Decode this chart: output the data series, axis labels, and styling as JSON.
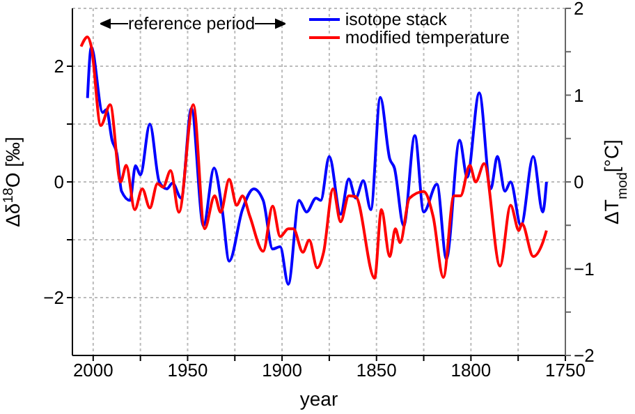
{
  "chart_data": {
    "type": "line",
    "xlabel": "year",
    "ylabel": "Δδ$^{18}$O [‰]",
    "y2label": "ΔT$_{mod}$[°C]",
    "annotations": [
      "reference period"
    ],
    "xlim": [
      2011,
      1750
    ],
    "xticks": [
      2000,
      {
        "value": 1975,
        "label": null
      },
      1950,
      {
        "value": 1925,
        "label": null
      },
      1900,
      {
        "value": 1875,
        "label": null
      },
      1850,
      {
        "value": 1825,
        "label": null
      },
      1800,
      {
        "value": 1775,
        "label": null
      },
      1750
    ],
    "ylim": [
      -3,
      3
    ],
    "yticks": [
      {
        "value": -2,
        "label": "−2"
      },
      {
        "value": -1,
        "label": null
      },
      0,
      {
        "value": 1,
        "label": null
      },
      2
    ],
    "y2lim": [
      -2,
      2
    ],
    "y2ticks": [
      {
        "value": -2,
        "label": "−2"
      },
      {
        "value": -1.5,
        "label": null
      },
      {
        "value": -1,
        "label": "−1"
      },
      {
        "value": -0.5,
        "label": null
      },
      0,
      {
        "value": 0.5,
        "label": null
      },
      1,
      {
        "value": 1.5,
        "label": null
      },
      2
    ],
    "grid": true,
    "legend": "top right",
    "marker": "none",
    "line_style": "solid",
    "series": [
      {
        "name": "isotope stack",
        "color": "#0000ff",
        "x": [
          2003,
          2001,
          1995,
          1993,
          1990,
          1987.4,
          1985,
          1980.5,
          1977.6,
          1975,
          1970,
          1965,
          1961,
          1958,
          1953.4,
          1948,
          1941.6,
          1936,
          1931.7,
          1928,
          1921,
          1915,
          1910,
          1905,
          1901,
          1896.7,
          1891,
          1887,
          1882,
          1879.5,
          1875,
          1869,
          1864.7,
          1861,
          1857,
          1853,
          1848,
          1843,
          1840.5,
          1835.6,
          1829.7,
          1825,
          1818,
          1813,
          1806,
          1802,
          1795.6,
          1789.5,
          1786,
          1782,
          1779,
          1773.5,
          1767,
          1762,
          1760
        ],
        "values": [
          1.45,
          2.33,
          1.2,
          1.25,
          0.72,
          0.48,
          -0.16,
          -0.32,
          0.28,
          0.12,
          1.0,
          0,
          -0.12,
          -0.02,
          -0.28,
          1.27,
          -0.76,
          0.24,
          -0.48,
          -1.37,
          -0.48,
          -0.12,
          -0.32,
          -1.16,
          -1.12,
          -1.77,
          -0.32,
          -0.52,
          -0.28,
          -0.32,
          0.44,
          -0.56,
          0.05,
          -0.28,
          0.02,
          -0.48,
          1.46,
          0.4,
          0.24,
          -0.76,
          0.8,
          -0.52,
          -0.04,
          -1.33,
          0.72,
          0.08,
          1.54,
          -0.12,
          0.44,
          -0.16,
          0,
          -0.76,
          0.44,
          -0.52,
          0
        ]
      },
      {
        "name": "modified temperature",
        "color": "#ff0000",
        "axis": "y2",
        "x": [
          2006.4,
          2003,
          2001,
          1996,
          1991,
          1985.5,
          1982.5,
          1978,
          1974,
          1970,
          1966,
          1963,
          1959,
          1954.6,
          1947,
          1941,
          1935.7,
          1932.5,
          1928,
          1924,
          1921,
          1917,
          1910,
          1905,
          1901,
          1896.7,
          1894,
          1889,
          1885.6,
          1881.4,
          1878,
          1873,
          1869,
          1864.7,
          1861,
          1851,
          1847.4,
          1843,
          1840,
          1837.5,
          1832.6,
          1825,
          1820,
          1814.6,
          1809,
          1805.5,
          1800.6,
          1797.5,
          1793,
          1784.6,
          1779,
          1774.6,
          1773,
          1767,
          1762,
          1760
        ],
        "values": [
          1.56,
          1.67,
          1.56,
          0.65,
          0.89,
          0,
          0.19,
          -0.32,
          -0.08,
          -0.3,
          -0.02,
          -0.06,
          0.13,
          -0.35,
          0.89,
          -0.54,
          -0.16,
          -0.35,
          0.03,
          -0.27,
          -0.16,
          -0.4,
          -0.8,
          -0.28,
          -0.63,
          -0.54,
          -0.54,
          -0.81,
          -0.67,
          -0.99,
          -0.81,
          -0.08,
          -0.46,
          -0.16,
          -0.17,
          -1.11,
          -0.32,
          -0.86,
          -0.54,
          -0.7,
          -0.19,
          -0.11,
          -0.4,
          -1.1,
          -0.16,
          -0.16,
          0.19,
          0,
          0.21,
          -0.97,
          -0.27,
          -0.56,
          -0.48,
          -0.86,
          -0.7,
          -0.56
        ]
      }
    ]
  }
}
